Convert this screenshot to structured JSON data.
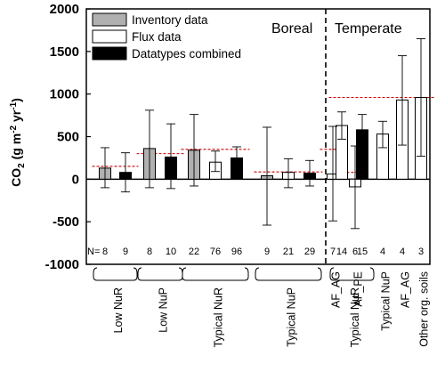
{
  "chart_data": {
    "type": "bar",
    "ylabel": {
      "main": "CO",
      "sub2": "2",
      "rest": " (g m",
      "sup1": "-2",
      "mid": " yr",
      "sup2": "-1",
      "end": ")"
    },
    "ylim": [
      -1000,
      2000
    ],
    "yticks": [
      -1000,
      -500,
      0,
      500,
      1000,
      1500,
      2000
    ],
    "legend_position": "top-left",
    "legend": [
      {
        "label": "Inventory data",
        "fill": "#b0b0b0"
      },
      {
        "label": "Flux data",
        "fill": "#ffffff"
      },
      {
        "label": "Datatypes combined",
        "fill": "#000000"
      }
    ],
    "regions": [
      "Boreal",
      "Temperate"
    ],
    "n_prefix": "N=",
    "bars": [
      {
        "n": "8",
        "value": 130,
        "err_low": -100,
        "err_high": 370,
        "kind": "inventory",
        "region": "boreal"
      },
      {
        "n": "9",
        "value": 80,
        "err_low": -150,
        "err_high": 310,
        "kind": "combined",
        "region": "boreal"
      },
      {
        "n": "8",
        "value": 360,
        "err_low": -100,
        "err_high": 810,
        "kind": "inventory",
        "region": "boreal"
      },
      {
        "n": "10",
        "value": 260,
        "err_low": -110,
        "err_high": 650,
        "kind": "combined",
        "region": "boreal"
      },
      {
        "n": "22",
        "value": 340,
        "err_low": -80,
        "err_high": 760,
        "kind": "inventory",
        "region": "boreal"
      },
      {
        "n": "76",
        "value": 200,
        "err_low": 90,
        "err_high": 330,
        "kind": "flux",
        "region": "boreal"
      },
      {
        "n": "96",
        "value": 250,
        "err_low": 130,
        "err_high": 380,
        "kind": "combined",
        "region": "boreal"
      },
      {
        "n": "9",
        "value": 40,
        "err_low": -540,
        "err_high": 610,
        "kind": "inventory",
        "region": "boreal"
      },
      {
        "n": "21",
        "value": 80,
        "err_low": -100,
        "err_high": 240,
        "kind": "flux",
        "region": "boreal"
      },
      {
        "n": "29",
        "value": 70,
        "err_low": -80,
        "err_high": 220,
        "kind": "combined",
        "region": "boreal"
      },
      {
        "n": "7",
        "value": 60,
        "err_low": -490,
        "err_high": 620,
        "kind": "flux",
        "region": "boreal"
      },
      {
        "n": "6",
        "value": -90,
        "err_low": -580,
        "err_high": 390,
        "kind": "flux",
        "region": "boreal"
      },
      {
        "n": "14",
        "value": 630,
        "err_low": 470,
        "err_high": 790,
        "kind": "flux",
        "region": "temperate"
      },
      {
        "n": "15",
        "value": 580,
        "err_low": 410,
        "err_high": 760,
        "kind": "combined",
        "region": "temperate"
      },
      {
        "n": "4",
        "value": 530,
        "err_low": 370,
        "err_high": 680,
        "kind": "flux",
        "region": "temperate"
      },
      {
        "n": "4",
        "value": 930,
        "err_low": 400,
        "err_high": 1450,
        "kind": "flux",
        "region": "temperate"
      },
      {
        "n": "3",
        "value": 960,
        "err_low": 270,
        "err_high": 1650,
        "kind": "flux",
        "region": "temperate"
      }
    ],
    "means": [
      {
        "from": 0,
        "to": 1,
        "value": 150
      },
      {
        "from": 2,
        "to": 3,
        "value": 300
      },
      {
        "from": 4,
        "to": 6,
        "value": 350
      },
      {
        "from": 7,
        "to": 9,
        "value": 85
      },
      {
        "from": 10,
        "to": 10,
        "value": 350
      },
      {
        "from": 11,
        "to": 11,
        "value": 80
      },
      {
        "from": 12,
        "to": 16,
        "value": 960
      }
    ],
    "groups": [
      {
        "label": "Low NuR",
        "from": 0,
        "to": 1,
        "bracket": true
      },
      {
        "label": "Low NuP",
        "from": 2,
        "to": 3,
        "bracket": true
      },
      {
        "label": "Typical NuR",
        "from": 4,
        "to": 6,
        "bracket": true
      },
      {
        "label": "Typical NuP",
        "from": 7,
        "to": 9,
        "bracket": true
      },
      {
        "label": "AF_AG",
        "from": 10,
        "to": 10,
        "bracket": false
      },
      {
        "label": "AF_PE",
        "from": 11,
        "to": 11,
        "bracket": false
      },
      {
        "label": "Typical NuR",
        "from": 12,
        "to": 13,
        "bracket": true
      },
      {
        "label": "Typical NuP",
        "from": 14,
        "to": 14,
        "bracket": false
      },
      {
        "label": "AF_AG",
        "from": 15,
        "to": 15,
        "bracket": false
      },
      {
        "label": "Other org. soils",
        "from": 16,
        "to": 16,
        "bracket": false
      }
    ],
    "colors": {
      "inventory": "#b0b0b0",
      "flux": "#ffffff",
      "combined": "#000000",
      "mean_line": "#cc0000"
    }
  }
}
